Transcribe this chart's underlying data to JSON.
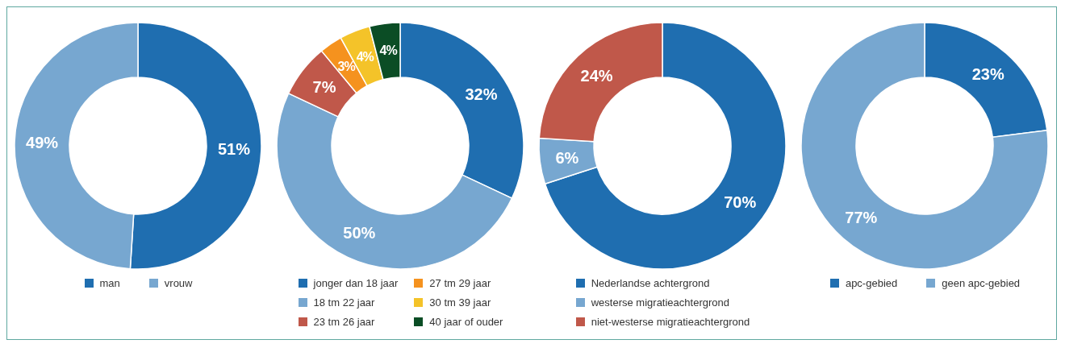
{
  "chart_data": [
    {
      "type": "donut",
      "categories": [
        "man",
        "vrouw"
      ],
      "values": [
        51,
        49
      ],
      "colors": [
        "#1f6eb0",
        "#77a7d0"
      ],
      "value_labels": [
        "51%",
        "49%"
      ],
      "legend": "bottom"
    },
    {
      "type": "donut",
      "categories": [
        "jonger dan 18 jaar",
        "18 tm 22 jaar",
        "23 tm 26 jaar",
        "27 tm 29 jaar",
        "30 tm 39 jaar",
        "40 jaar of ouder"
      ],
      "values": [
        32,
        50,
        7,
        3,
        4,
        4
      ],
      "colors": [
        "#1f6eb0",
        "#77a7d0",
        "#c0584a",
        "#f5921e",
        "#f4c329",
        "#0b4d25"
      ],
      "value_labels": [
        "32%",
        "50%",
        "7%",
        "3%",
        "4%",
        "4%"
      ],
      "legend": "bottom"
    },
    {
      "type": "donut",
      "categories": [
        "Nederlandse achtergrond",
        "westerse migratieachtergrond",
        "niet-westerse migratieachtergrond"
      ],
      "values": [
        70,
        6,
        24
      ],
      "colors": [
        "#1f6eb0",
        "#77a7d0",
        "#c0584a"
      ],
      "value_labels": [
        "70%",
        "6%",
        "24%"
      ],
      "legend": "bottom"
    },
    {
      "type": "donut",
      "categories": [
        "apc-gebied",
        "geen apc-gebied"
      ],
      "values": [
        23,
        77
      ],
      "colors": [
        "#1f6eb0",
        "#77a7d0"
      ],
      "value_labels": [
        "23%",
        "77%"
      ],
      "legend": "bottom"
    }
  ]
}
